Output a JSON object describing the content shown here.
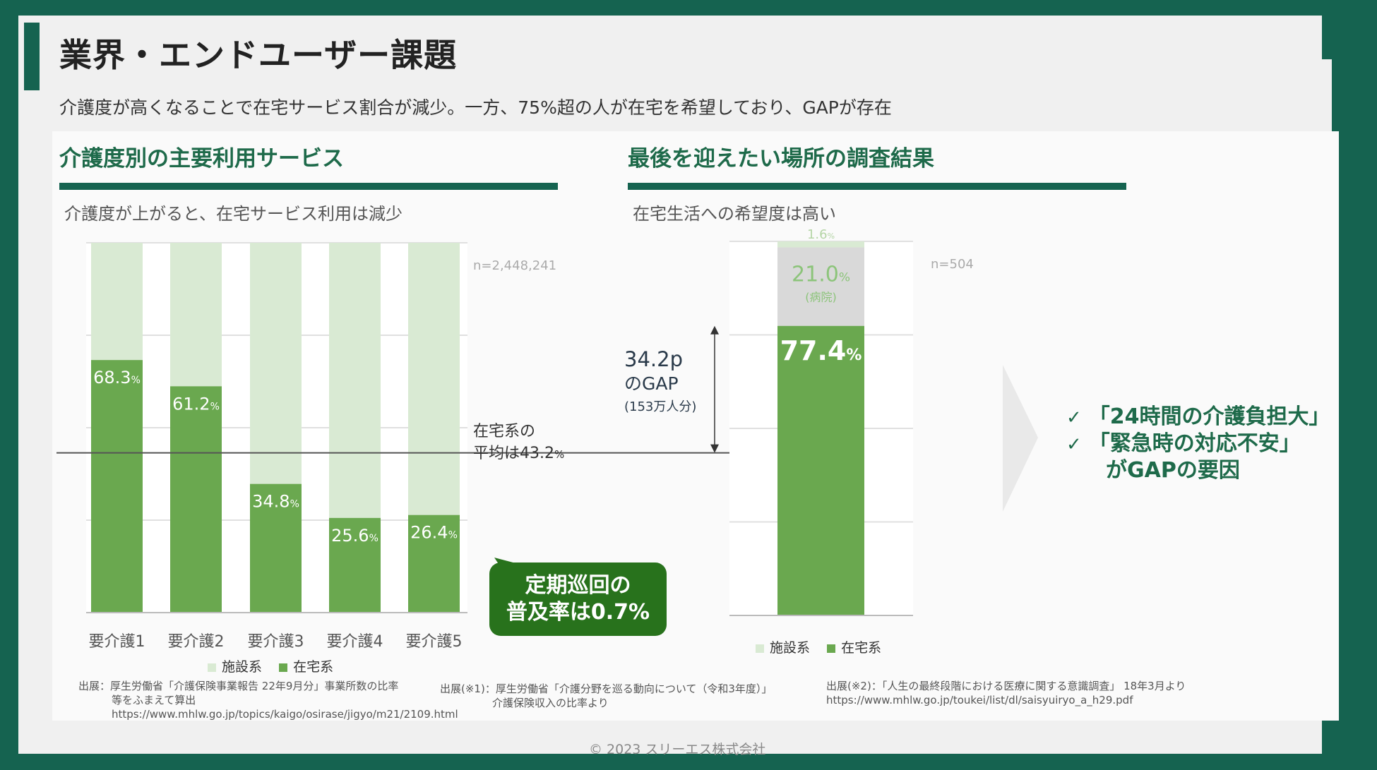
{
  "header": {
    "title": "業界・エンドユーザー課題",
    "subtitle": "介護度が高くなることで在宅サービス割合が減少。一方、75%超の人が在宅を希望しており、GAPが存在"
  },
  "left_section": {
    "title": "介護度別の主要利用サービス",
    "subtitle": "介護度が上がると、在宅サービス利用は減少",
    "n_label": "n=2,448,241",
    "average_line_label_1": "在宅系の",
    "average_line_label_2": "平均は43.2",
    "average_unit": "%",
    "bubble_line_1": "定期巡回の",
    "bubble_line_2": "普及率は0.7%",
    "legend": {
      "facility": "施設系",
      "home": "在宅系"
    },
    "source_1_prefix": "出展：",
    "source_1_line_1": "厚生労働省「介護保険事業報告 22年9月分」事業所数の比率",
    "source_1_line_2": "等をふまえて算出",
    "source_1_line_3": "https://www.mhlw.go.jp/topics/kaigo/osirase/jigyo/m21/2109.html",
    "source_2_prefix": "出展(※1)：",
    "source_2_line_1": "厚生労働省「介護分野を巡る動向について（令和3年度）」",
    "source_2_line_2": "介護保険収入の比率より"
  },
  "right_section": {
    "title": "最後を迎えたい場所の調査結果",
    "subtitle": "在宅生活への希望度は高い",
    "n_label": "n=504",
    "seg_top_value": "1.6",
    "seg_mid_value": "21.0",
    "seg_mid_note": "(病院)",
    "seg_home_value": "77.4",
    "unit": "%",
    "gap_line_1": "34.2p",
    "gap_line_2": "のGAP",
    "gap_line_3": "(153万人分)",
    "legend": {
      "facility": "施設系",
      "home": "在宅系"
    },
    "source_prefix": "出展(※2)：",
    "source_line_1": "「人生の最終段階における医療に関する意識調査」 18年3月より",
    "source_line_2": "https://www.mhlw.go.jp/toukei/list/dl/saisyuiryo_a_h29.pdf"
  },
  "conclusion": {
    "check_1": "「24時間の介護負担大」",
    "check_2": "「緊急時の対応不安」",
    "check_3": "がGAPの要因",
    "check_mark": "✓"
  },
  "footer": {
    "copyright": "© 2023 スリーエス株式会社"
  },
  "colors": {
    "brand": "#156350",
    "home": "#6aa84f",
    "facility": "#d9ead3",
    "hospital": "#d9d9d9",
    "bubble": "#28721c"
  },
  "chart_data": [
    {
      "type": "bar",
      "stacked": true,
      "title": "介護度別の主要利用サービス",
      "categories": [
        "要介護1",
        "要介護2",
        "要介護3",
        "要介護4",
        "要介護5"
      ],
      "series": [
        {
          "name": "在宅系",
          "values": [
            68.3,
            61.2,
            34.8,
            25.6,
            26.4
          ]
        },
        {
          "name": "施設系",
          "values": [
            31.7,
            38.8,
            65.2,
            74.4,
            73.6
          ]
        }
      ],
      "value_labels": [
        "68.3",
        "61.2",
        "34.8",
        "25.6",
        "26.4"
      ],
      "average_line": 43.2,
      "ylim": [
        0,
        100
      ],
      "grid": true,
      "legend": "bottom"
    },
    {
      "type": "bar",
      "stacked": true,
      "title": "最後を迎えたい場所の調査結果",
      "categories": [
        ""
      ],
      "series": [
        {
          "name": "在宅系",
          "values": [
            77.4
          ]
        },
        {
          "name": "施設系(病院)",
          "values": [
            21.0
          ]
        },
        {
          "name": "施設系",
          "values": [
            1.6
          ]
        }
      ],
      "gap_points": 34.2,
      "ylim": [
        0,
        100
      ],
      "grid": true,
      "legend": "bottom"
    }
  ]
}
